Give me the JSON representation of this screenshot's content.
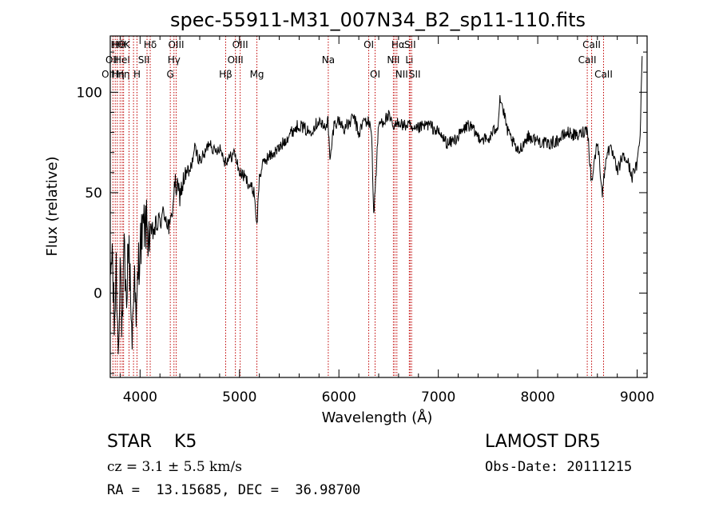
{
  "chart_data": {
    "type": "line",
    "title": "spec-55911-M31_007N34_B2_sp11-110.fits",
    "xlabel": "Wavelength (Å)",
    "ylabel": "Flux (relative)",
    "xlim": [
      3700,
      9100
    ],
    "ylim": [
      -42,
      128
    ],
    "x_ticks": [
      4000,
      5000,
      6000,
      7000,
      8000,
      9000
    ],
    "y_ticks": [
      0,
      50,
      100
    ],
    "grid": false,
    "line_color": "#000000",
    "marker_color": "#c00000",
    "series": [
      {
        "x": [
          3700,
          3720,
          3740,
          3760,
          3780,
          3800,
          3820,
          3840,
          3860,
          3880,
          3900,
          3920,
          3940,
          3960,
          3980,
          4000,
          4050,
          4100,
          4150,
          4200,
          4250,
          4300,
          4350,
          4400,
          4450,
          4500,
          4550,
          4600,
          4650,
          4700,
          4750,
          4800,
          4850,
          4900,
          4950,
          5000,
          5050,
          5100,
          5150,
          5175,
          5200,
          5250,
          5300,
          5400,
          5500,
          5600,
          5700,
          5800,
          5850,
          5890,
          5910,
          5950,
          6000,
          6050,
          6100,
          6150,
          6200,
          6250,
          6300,
          6330,
          6350,
          6400,
          6450,
          6500,
          6550,
          6560,
          6600,
          6650,
          6700,
          6750,
          6800,
          6900,
          7000,
          7100,
          7200,
          7300,
          7400,
          7500,
          7600,
          7620,
          7700,
          7800,
          7900,
          8000,
          8100,
          8200,
          8300,
          8400,
          8500,
          8540,
          8600,
          8650,
          8700,
          8750,
          8800,
          8850,
          8900,
          8950,
          9000,
          9030,
          9050
        ],
        "y": [
          5,
          22,
          -18,
          12,
          -28,
          18,
          -22,
          20,
          -8,
          26,
          8,
          -25,
          15,
          -20,
          12,
          24,
          35,
          28,
          32,
          36,
          40,
          31,
          54,
          49,
          58,
          60,
          72,
          66,
          69,
          76,
          70,
          73,
          66,
          67,
          70,
          60,
          58,
          54,
          50,
          33,
          58,
          66,
          68,
          72,
          79,
          84,
          80,
          86,
          82,
          86,
          65,
          84,
          86,
          82,
          84,
          88,
          79,
          86,
          85,
          80,
          38,
          84,
          86,
          88,
          82,
          82,
          86,
          83,
          84,
          80,
          82,
          84,
          80,
          74,
          78,
          84,
          78,
          76,
          84,
          98,
          80,
          70,
          78,
          76,
          74,
          76,
          80,
          78,
          82,
          55,
          76,
          50,
          72,
          70,
          60,
          68,
          66,
          58,
          64,
          80,
          118
        ]
      }
    ],
    "line_markers": [
      {
        "x": 3727,
        "label": "OII",
        "row": 2,
        "dx": -6
      },
      {
        "x": 3750,
        "label": "OII",
        "row": 1,
        "dx": -4
      },
      {
        "x": 3771,
        "label": "Hθ",
        "row": 0,
        "dx": 0
      },
      {
        "x": 3799,
        "label": "Hη",
        "row": 2,
        "dx": 4
      },
      {
        "x": 3820,
        "label": "HeI",
        "row": 1,
        "dx": 0
      },
      {
        "x": 3834,
        "label": "Hθ",
        "row": 0,
        "dx": -6
      },
      {
        "x": 3889,
        "label": "Hη",
        "row": 2,
        "dx": -14
      },
      {
        "x": 3934,
        "label": "K",
        "row": 0,
        "dx": -8
      },
      {
        "x": 3969,
        "label": "H",
        "row": 2,
        "dx": 0
      },
      {
        "x": 4070,
        "label": "SII",
        "row": 1,
        "dx": -4
      },
      {
        "x": 4102,
        "label": "Hδ",
        "row": 0,
        "dx": 0
      },
      {
        "x": 4304,
        "label": "G",
        "row": 2,
        "dx": 0
      },
      {
        "x": 4341,
        "label": "Hγ",
        "row": 1,
        "dx": 0
      },
      {
        "x": 4363,
        "label": "OIII",
        "row": 0,
        "dx": 0
      },
      {
        "x": 4861,
        "label": "Hβ",
        "row": 2,
        "dx": 0
      },
      {
        "x": 4959,
        "label": "OIII",
        "row": 1,
        "dx": 0
      },
      {
        "x": 5007,
        "label": "OIII",
        "row": 0,
        "dx": 0
      },
      {
        "x": 5175,
        "label": "Mg",
        "row": 2,
        "dx": 0
      },
      {
        "x": 5893,
        "label": "Na",
        "row": 1,
        "dx": 0
      },
      {
        "x": 6300,
        "label": "OI",
        "row": 0,
        "dx": 0
      },
      {
        "x": 6364,
        "label": "OI",
        "row": 2,
        "dx": 0
      },
      {
        "x": 6548,
        "label": "NII",
        "row": 1,
        "dx": 0
      },
      {
        "x": 6563,
        "label": "Hα",
        "row": 0,
        "dx": 4
      },
      {
        "x": 6583,
        "label": "NII",
        "row": 2,
        "dx": 6
      },
      {
        "x": 6708,
        "label": "Li",
        "row": 1,
        "dx": 0
      },
      {
        "x": 6716,
        "label": "SII",
        "row": 0,
        "dx": 0
      },
      {
        "x": 6731,
        "label": "SII",
        "row": 2,
        "dx": 4
      },
      {
        "x": 8498,
        "label": "CaII",
        "row": 1,
        "dx": 0
      },
      {
        "x": 8542,
        "label": "CaII",
        "row": 0,
        "dx": 0
      },
      {
        "x": 8662,
        "label": "CaII",
        "row": 2,
        "dx": 0
      }
    ]
  },
  "info": {
    "class_text": "STAR    K5",
    "survey_text": "LAMOST DR5",
    "cz_text": "cz = 3.1 ± 5.5 km/s",
    "obs_date_text": "Obs-Date: 20111215",
    "coords_text": "RA =  13.15685, DEC =  36.98700"
  }
}
